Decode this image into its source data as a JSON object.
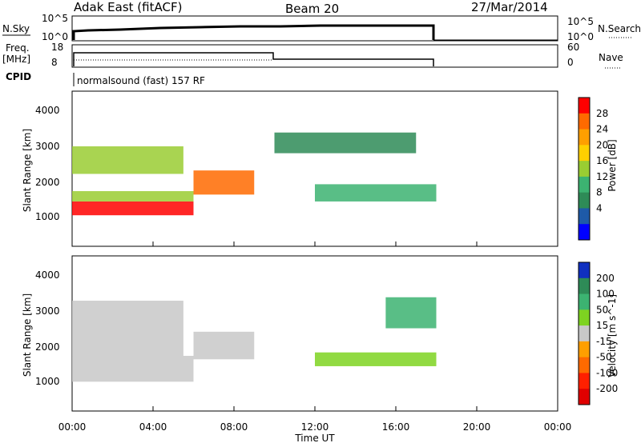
{
  "header": {
    "station": "Adak East (fitACF)",
    "beam": "Beam 20",
    "date": "27/Mar/2014"
  },
  "panels": {
    "nsky_label": "N.Sky",
    "nsky_ticks": [
      "10^5",
      "10^0"
    ],
    "nsearch_label": "N.Search",
    "nsearch_ticks": [
      "10^5",
      "10^0"
    ],
    "freq_label_1": "Freq.",
    "freq_label_2": "[MHz]",
    "freq_ticks": [
      "18",
      "8"
    ],
    "nave_label": "Nave",
    "nave_ticks": [
      "60",
      "0"
    ],
    "cpid_label": "CPID",
    "cpid_text": "normalsound (fast) 157 RF"
  },
  "chart_data": [
    {
      "type": "heatmap",
      "name": "power",
      "ylabel": "Slant Range [km]",
      "xlabel": "Time UT",
      "xlim": [
        "00:00",
        "24:00"
      ],
      "ylim": [
        0,
        4500
      ],
      "yticks": [
        "1000",
        "2000",
        "3000",
        "4000"
      ],
      "colorbar": {
        "label": "Power [dB]",
        "ticks": [
          "28",
          "24",
          "20",
          "16",
          "12",
          "8",
          "4"
        ],
        "colors": [
          "#ff0000",
          "#ff6a00",
          "#ff9f00",
          "#ffd000",
          "#9acd32",
          "#3cb371",
          "#2e8b57",
          "#1e5aa8",
          "#0000ff"
        ]
      },
      "bands": [
        {
          "x": [
            "00:00",
            "06:00"
          ],
          "y": [
            900,
            1300
          ],
          "level": "28"
        },
        {
          "x": [
            "06:00",
            "09:00"
          ],
          "y": [
            1500,
            2200
          ],
          "level": "24"
        },
        {
          "x": [
            "00:00",
            "06:00"
          ],
          "y": [
            1300,
            1600
          ],
          "level": "12"
        },
        {
          "x": [
            "00:00",
            "05:30"
          ],
          "y": [
            2100,
            2900
          ],
          "level": "12"
        },
        {
          "x": [
            "12:00",
            "18:00"
          ],
          "y": [
            1300,
            1800
          ],
          "level": "8"
        },
        {
          "x": [
            "10:00",
            "17:00"
          ],
          "y": [
            2700,
            3300
          ],
          "level": "4"
        }
      ]
    },
    {
      "type": "heatmap",
      "name": "velocity",
      "ylabel": "Slant Range [km]",
      "xlabel": "Time UT",
      "xlim": [
        "00:00",
        "24:00"
      ],
      "ylim": [
        0,
        4500
      ],
      "yticks": [
        "1000",
        "2000",
        "3000",
        "4000"
      ],
      "colorbar": {
        "label": "Velocity [m s^-1]",
        "ticks": [
          "200",
          "100",
          "50",
          "15",
          "-15",
          "-50",
          "-100",
          "-200"
        ],
        "colors": [
          "#1030c0",
          "#2e8b57",
          "#3cb371",
          "#7ed321",
          "#c8c8c8",
          "#ff9f00",
          "#ff6a00",
          "#ff2000",
          "#e00000"
        ]
      },
      "bands": [
        {
          "x": [
            "00:00",
            "06:00"
          ],
          "y": [
            850,
            1600
          ],
          "level": "-15"
        },
        {
          "x": [
            "00:00",
            "05:30"
          ],
          "y": [
            1600,
            3200
          ],
          "level": "-15"
        },
        {
          "x": [
            "06:00",
            "09:00"
          ],
          "y": [
            1500,
            2300
          ],
          "level": "-15"
        },
        {
          "x": [
            "12:00",
            "18:00"
          ],
          "y": [
            1300,
            1700
          ],
          "level": "15"
        },
        {
          "x": [
            "15:30",
            "18:00"
          ],
          "y": [
            2400,
            3300
          ],
          "level": "50"
        }
      ]
    }
  ],
  "xaxis": {
    "ticks": [
      "00:00",
      "04:00",
      "08:00",
      "12:00",
      "16:00",
      "20:00",
      "00:00"
    ],
    "label": "Time UT"
  }
}
